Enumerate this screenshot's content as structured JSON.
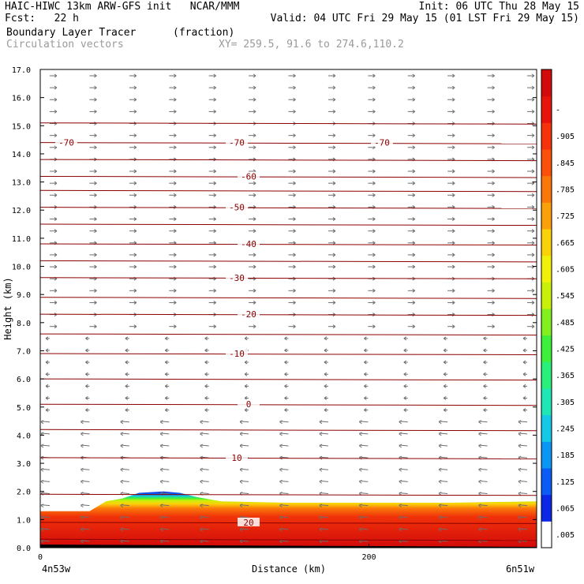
{
  "header": {
    "left1": "HAIC-HIWC 13km ARW-GFS init   NCAR/MMM",
    "left2": "Fcst:   22 h",
    "right1": "Init: 06 UTC Thu 28 May 15",
    "right2": "Valid: 04 UTC Fri 29 May 15 (01 LST Fri 29 May 15)",
    "field": "Boundary Layer Tracer",
    "field_units": "(fraction)",
    "vectors": "Circulation vectors",
    "xy": "XY= 259.5, 91.6 to 274.6,110.2"
  },
  "chart_data": {
    "type": "heatmap",
    "ylabel": "Height (km)",
    "xlabel": "Distance (km)",
    "ylim": [
      0,
      17
    ],
    "xlim": [
      0,
      302
    ],
    "y_ticks": [
      "0.0",
      "1.0",
      "2.0",
      "3.0",
      "4.0",
      "5.0",
      "6.0",
      "7.0",
      "8.0",
      "9.0",
      "10.0",
      "11.0",
      "12.0",
      "13.0",
      "14.0",
      "15.0",
      "16.0",
      "17.0"
    ],
    "x_ticks": [
      {
        "value": 0,
        "label": "0"
      },
      {
        "value": 200,
        "label": "200"
      }
    ],
    "x_end_labels": {
      "left": "4n53w",
      "right": "6n51w"
    },
    "colorbar": {
      "labels": [
        ".005",
        ".065",
        ".125",
        ".185",
        ".245",
        ".305",
        ".365",
        ".425",
        ".485",
        ".545",
        ".605",
        ".665",
        ".725",
        ".785",
        ".845",
        ".905",
        "-"
      ],
      "colors": [
        "#ffffff",
        "#0a28e6",
        "#0a5cf5",
        "#0a96f5",
        "#14c8e6",
        "#1ee6b4",
        "#28f078",
        "#3cf03c",
        "#82f01e",
        "#c8f00a",
        "#f0f00a",
        "#fad20a",
        "#faa00a",
        "#fa780a",
        "#fa500a",
        "#f5320a",
        "#e6140a",
        "#d20a0a"
      ]
    },
    "isotherms": [
      {
        "label": "20",
        "height_km": 0.9
      },
      {
        "label": "10",
        "height_km": 3.2
      },
      {
        "label": "0",
        "height_km": 5.1
      },
      {
        "label": "-10",
        "height_km": 6.9
      },
      {
        "label": "-20",
        "height_km": 8.3
      },
      {
        "label": "-30",
        "height_km": 9.6
      },
      {
        "label": "-40",
        "height_km": 10.8
      },
      {
        "label": "-50",
        "height_km": 12.1
      },
      {
        "label": "-60",
        "height_km": 13.2
      },
      {
        "label": "-70",
        "height_km": 14.4
      }
    ],
    "extra_contour_heights_km": [
      0.3,
      1.9,
      4.2,
      6.0,
      7.6,
      8.9,
      10.2,
      11.5,
      12.7,
      13.8,
      15.1
    ],
    "tracer_top_km": [
      [
        0,
        1.3
      ],
      [
        30,
        1.3
      ],
      [
        40,
        1.65
      ],
      [
        50,
        1.75
      ],
      [
        60,
        1.95
      ],
      [
        75,
        2.0
      ],
      [
        85,
        1.95
      ],
      [
        95,
        1.8
      ],
      [
        110,
        1.65
      ],
      [
        150,
        1.6
      ],
      [
        200,
        1.6
      ],
      [
        250,
        1.6
      ],
      [
        302,
        1.65
      ]
    ]
  }
}
